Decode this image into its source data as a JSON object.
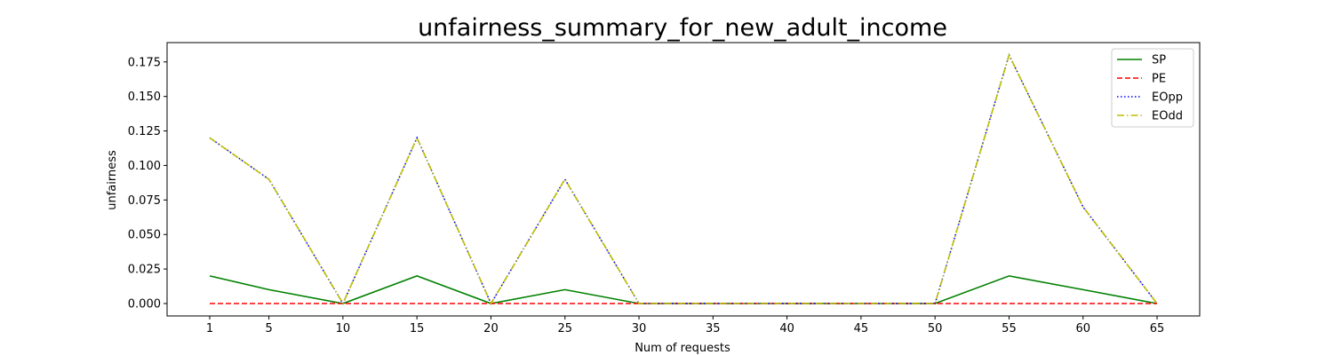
{
  "chart_data": {
    "type": "line",
    "title": "unfairness_summary_for_new_adult_income",
    "xlabel": "Num of requests",
    "ylabel": "unfairness",
    "x": [
      1,
      5,
      10,
      15,
      20,
      25,
      30,
      35,
      40,
      45,
      50,
      55,
      60,
      65
    ],
    "xticks": [
      "1",
      "5",
      "10",
      "15",
      "20",
      "25",
      "30",
      "35",
      "40",
      "45",
      "50",
      "55",
      "60",
      "65"
    ],
    "yticks": [
      "0.000",
      "0.025",
      "0.050",
      "0.075",
      "0.100",
      "0.125",
      "0.150",
      "0.175"
    ],
    "ylim": [
      -0.009,
      0.189
    ],
    "grid": false,
    "legend": "top-right",
    "series": [
      {
        "name": "SP",
        "color": "#008000",
        "style": "solid",
        "values": [
          0.02,
          0.01,
          0.0,
          0.02,
          0.0,
          0.01,
          0.0,
          0.0,
          0.0,
          0.0,
          0.0,
          0.02,
          0.01,
          0.0
        ]
      },
      {
        "name": "PE",
        "color": "#ff0000",
        "style": "dashed",
        "values": [
          0,
          0,
          0,
          0,
          0,
          0,
          0,
          0,
          0,
          0,
          0,
          0,
          0,
          0
        ]
      },
      {
        "name": "EOpp",
        "color": "#0000ff",
        "style": "dotted",
        "values": [
          0.12,
          0.09,
          0.0,
          0.12,
          0.0,
          0.09,
          0.0,
          0.0,
          0.0,
          0.0,
          0.0,
          0.18,
          0.07,
          0.0
        ]
      },
      {
        "name": " EOdd",
        "color": "#bfbf00",
        "style": "dashdot",
        "values": [
          0.12,
          0.09,
          0.0,
          0.12,
          0.0,
          0.09,
          0.0,
          0.0,
          0.0,
          0.0,
          0.0,
          0.18,
          0.07,
          0.0
        ]
      }
    ]
  }
}
